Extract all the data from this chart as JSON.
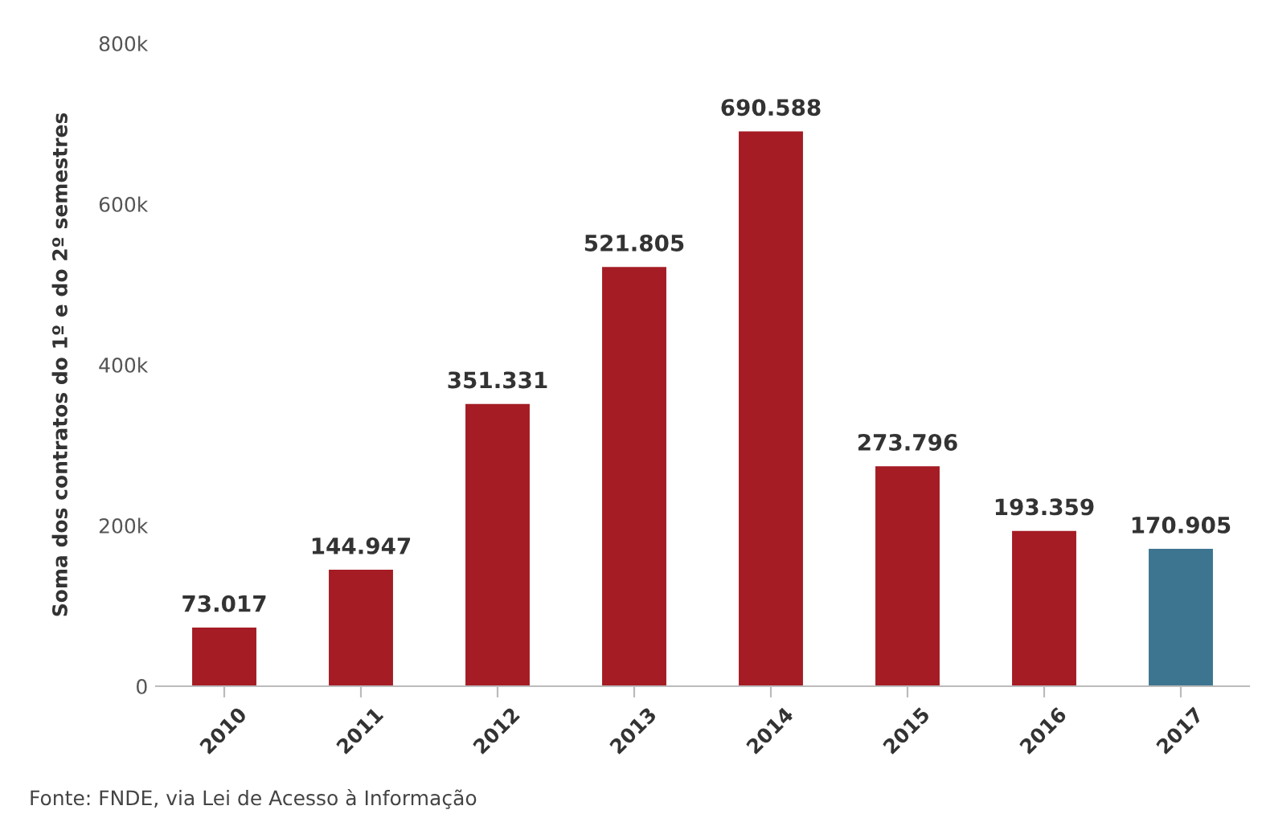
{
  "chart_data": {
    "type": "bar",
    "ylabel": "Soma dos contratos do 1º e do 2º semestres",
    "categories": [
      "2010",
      "2011",
      "2012",
      "2013",
      "2014",
      "2015",
      "2016",
      "2017"
    ],
    "values": [
      73017,
      144947,
      351331,
      521805,
      690588,
      273796,
      193359,
      170905
    ],
    "value_labels": [
      "73.017",
      "144.947",
      "351.331",
      "521.805",
      "690.588",
      "273.796",
      "193.359",
      "170.905"
    ],
    "colors": [
      "#a51c24",
      "#a51c24",
      "#a51c24",
      "#a51c24",
      "#a51c24",
      "#a51c24",
      "#a51c24",
      "#3d7590"
    ],
    "ylim": [
      0,
      800000
    ],
    "yticks": [
      0,
      {
        "value": 200000,
        "label": "200k"
      },
      {
        "value": 400000,
        "label": "400k"
      },
      {
        "value": 600000,
        "label": "600k"
      },
      {
        "value": 800000,
        "label": "800k"
      }
    ],
    "grid": false,
    "legend": false,
    "annotations": [
      "Fonte: FNDE, via Lei de Acesso à Informação"
    ]
  }
}
